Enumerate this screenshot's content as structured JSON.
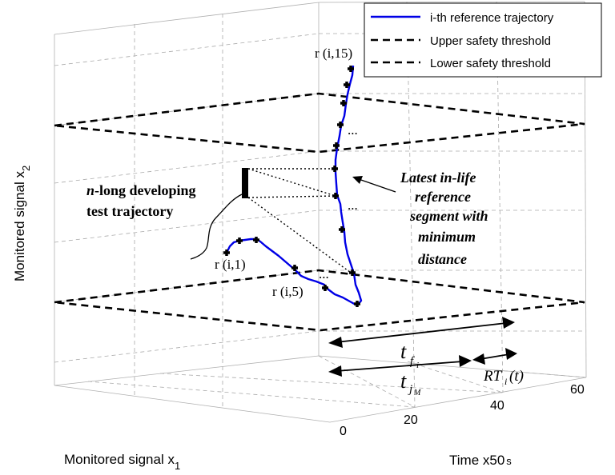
{
  "figure": {
    "xlabel_prefix": "Monitored signal x",
    "xlabel_sub": "1",
    "ylabel_prefix": "Monitored signal x",
    "ylabel_sub": "2",
    "zlabel": "Time x50",
    "zlabel_unit": "s",
    "time_ticks": [
      "0",
      "20",
      "40",
      "60"
    ]
  },
  "legend": {
    "items": [
      {
        "label": "i-th reference trajectory",
        "style": "solid",
        "color": "#0000e6"
      },
      {
        "label": "Upper safety threshold",
        "style": "dashed",
        "color": "#000000"
      },
      {
        "label": "Lower safety threshold",
        "style": "dashed",
        "color": "#000000"
      }
    ]
  },
  "annotations": {
    "test_traj_line1_prefix": "n",
    "test_traj_line1_rest": "-long developing",
    "test_traj_line2": "test trajectory",
    "segment_lines": [
      "Latest in-life",
      "reference",
      "segment with",
      "minimum",
      "distance"
    ],
    "r_i15": "r (i,15)",
    "r_i1": "r (i,1)",
    "r_i5": "r (i,5)",
    "ellipsis": "...",
    "t_f_main": "t",
    "t_f_sub": "f",
    "t_f_subsub": "i",
    "t_j_main": "t",
    "t_j_sub": "j",
    "t_j_subsub": "M",
    "rt_main": "RT",
    "rt_sub": "i",
    "rt_arg": "(t)"
  }
}
